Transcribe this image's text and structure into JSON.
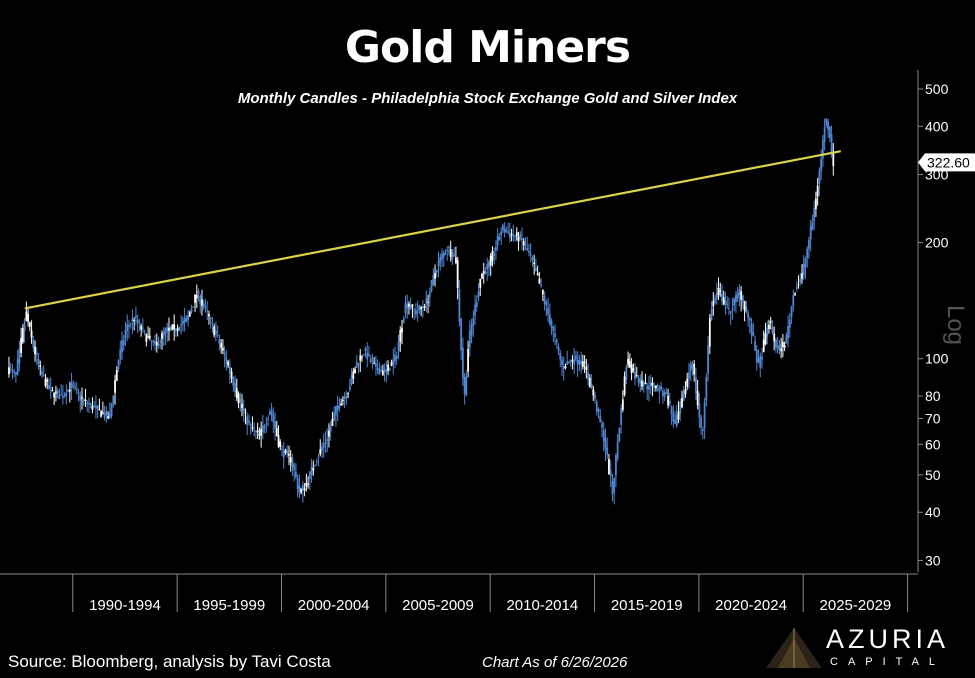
{
  "colors": {
    "background": "#000000",
    "candles": "#4f86d2",
    "candles_light": "#ffffff",
    "trendline": "#d8d34a",
    "axis": "#888888",
    "text": "#ffffff"
  },
  "chart_data": {
    "type": "candlestick",
    "title": "Gold Miners",
    "subtitle": "Monthly Candles - Philadelphia Stock Exchange Gold and Silver Index",
    "yscale": "log",
    "ylabel": "Log",
    "ylim": [
      28,
      560
    ],
    "xlim": [
      1986.8,
      2030.5
    ],
    "y_ticks": [
      30,
      40,
      50,
      60,
      70,
      80,
      100,
      200,
      300,
      400,
      500
    ],
    "x_categories": [
      "1990-1994",
      "1995-1999",
      "2000-2004",
      "2005-2009",
      "2010-2014",
      "2015-2019",
      "2020-2024",
      "2025-2029"
    ],
    "last_price_label": "322.60",
    "last_price": 322.6,
    "trendline": {
      "x": [
        1987.7,
        2026.8
      ],
      "y": [
        135,
        345
      ]
    },
    "price_path": [
      [
        1986.9,
        95
      ],
      [
        1987.3,
        90
      ],
      [
        1987.8,
        132
      ],
      [
        1988.1,
        110
      ],
      [
        1988.5,
        92
      ],
      [
        1989.0,
        82
      ],
      [
        1989.5,
        80
      ],
      [
        1990.0,
        85
      ],
      [
        1990.5,
        78
      ],
      [
        1991.0,
        75
      ],
      [
        1991.5,
        72
      ],
      [
        1991.8,
        70
      ],
      [
        1992.2,
        98
      ],
      [
        1992.6,
        120
      ],
      [
        1993.0,
        128
      ],
      [
        1993.5,
        115
      ],
      [
        1994.0,
        108
      ],
      [
        1994.5,
        118
      ],
      [
        1995.0,
        120
      ],
      [
        1995.5,
        126
      ],
      [
        1996.0,
        148
      ],
      [
        1996.5,
        130
      ],
      [
        1997.0,
        112
      ],
      [
        1997.5,
        95
      ],
      [
        1998.0,
        78
      ],
      [
        1998.5,
        67
      ],
      [
        1999.0,
        63
      ],
      [
        1999.5,
        74
      ],
      [
        2000.0,
        58
      ],
      [
        2000.5,
        55
      ],
      [
        2000.9,
        45
      ],
      [
        2001.2,
        47
      ],
      [
        2001.7,
        55
      ],
      [
        2002.2,
        62
      ],
      [
        2002.7,
        75
      ],
      [
        2003.2,
        82
      ],
      [
        2003.6,
        96
      ],
      [
        2004.0,
        105
      ],
      [
        2004.5,
        95
      ],
      [
        2005.0,
        92
      ],
      [
        2005.5,
        100
      ],
      [
        2006.0,
        140
      ],
      [
        2006.5,
        132
      ],
      [
        2007.0,
        140
      ],
      [
        2007.5,
        175
      ],
      [
        2008.0,
        195
      ],
      [
        2008.4,
        180
      ],
      [
        2008.8,
        78
      ],
      [
        2009.0,
        110
      ],
      [
        2009.6,
        165
      ],
      [
        2010.0,
        175
      ],
      [
        2010.6,
        218
      ],
      [
        2011.0,
        210
      ],
      [
        2011.5,
        205
      ],
      [
        2012.0,
        182
      ],
      [
        2012.5,
        150
      ],
      [
        2013.0,
        120
      ],
      [
        2013.5,
        95
      ],
      [
        2014.0,
        100
      ],
      [
        2014.5,
        98
      ],
      [
        2015.0,
        80
      ],
      [
        2015.5,
        62
      ],
      [
        2015.9,
        45
      ],
      [
        2016.2,
        65
      ],
      [
        2016.6,
        100
      ],
      [
        2017.0,
        90
      ],
      [
        2017.5,
        85
      ],
      [
        2018.0,
        85
      ],
      [
        2018.5,
        80
      ],
      [
        2018.9,
        67
      ],
      [
        2019.3,
        80
      ],
      [
        2019.7,
        100
      ],
      [
        2020.2,
        62
      ],
      [
        2020.6,
        135
      ],
      [
        2021.0,
        150
      ],
      [
        2021.5,
        132
      ],
      [
        2022.0,
        150
      ],
      [
        2022.5,
        122
      ],
      [
        2022.9,
        95
      ],
      [
        2023.4,
        125
      ],
      [
        2023.8,
        105
      ],
      [
        2024.2,
        110
      ],
      [
        2024.6,
        150
      ],
      [
        2025.0,
        165
      ],
      [
        2025.5,
        230
      ],
      [
        2025.9,
        330
      ],
      [
        2026.1,
        420
      ],
      [
        2026.3,
        390
      ],
      [
        2026.45,
        322.6
      ]
    ]
  },
  "footer": {
    "source": "Source: Bloomberg, analysis by Tavi Costa",
    "as_of": "Chart As of 6/26/2026"
  },
  "logo": {
    "name": "AZURIA",
    "sub": "CAPITAL"
  }
}
